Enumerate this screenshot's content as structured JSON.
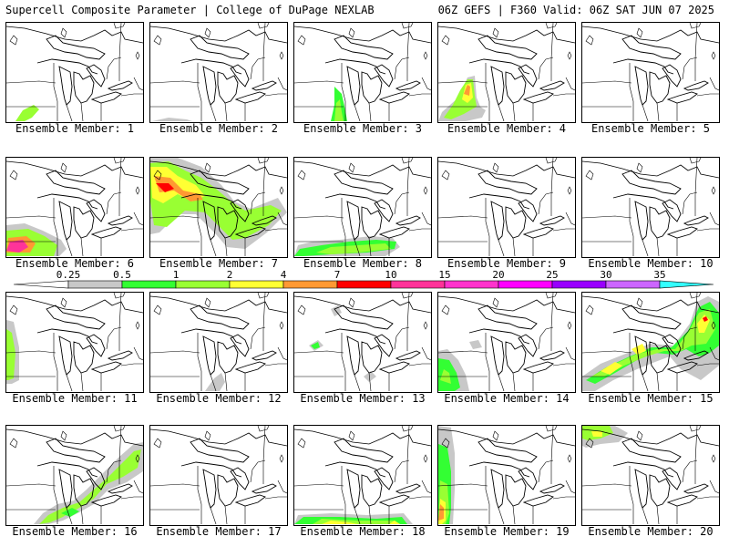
{
  "header": {
    "left": "Supercell Composite Parameter | College of DuPage NEXLAB",
    "right": "06Z GEFS | F360 Valid: 06Z SAT JUN 07 2025"
  },
  "colorbar": {
    "labels": [
      "0.25",
      "0.5",
      "1",
      "2",
      "4",
      "7",
      "10",
      "15",
      "20",
      "25",
      "30",
      "35"
    ],
    "colors": [
      "#c8c8c8",
      "#33ff33",
      "#99ff33",
      "#ffff33",
      "#ff9933",
      "#ff0000",
      "#ff3399",
      "#ff33cc",
      "#ff00ff",
      "#9900ff",
      "#cc66ff",
      "#33ffff"
    ]
  },
  "panels": [
    {
      "label": "Ensemble Member: 1",
      "blobs": [
        [
          "#99ff33",
          "M10,108 L18,96 L30,90 L36,95 L28,104 L20,108 Z"
        ]
      ]
    },
    {
      "label": "Ensemble Member: 2",
      "blobs": [
        [
          "#c8c8c8",
          "M2,108 L20,104 L40,106 L46,108 Z"
        ]
      ]
    },
    {
      "label": "Ensemble Member: 3",
      "blobs": [
        [
          "#33ff33",
          "M40,108 L44,90 L44,70 L52,78 L56,96 L58,108 Z"
        ],
        [
          "#99ff33",
          "M44,108 L46,88 L50,84 L52,98 L54,108 Z"
        ]
      ]
    },
    {
      "label": "Ensemble Member: 4",
      "blobs": [
        [
          "#c8c8c8",
          "M0,108 L4,98 L22,82 L32,60 L40,58 L42,82 L46,92 L52,96 L48,104 L30,108 Z"
        ],
        [
          "#99ff33",
          "M6,104 L16,90 L24,74 L32,62 L38,62 L40,80 L42,92 L28,100 L14,106 Z"
        ],
        [
          "#ffff33",
          "M26,84 L30,68 L36,66 L38,82 L32,88 Z"
        ],
        [
          "#ff9933",
          "M28,78 L32,68 L35,70 L34,80 Z"
        ]
      ]
    },
    {
      "label": "Ensemble Member: 5",
      "blobs": []
    },
    {
      "label": "Ensemble Member: 6",
      "blobs": [
        [
          "#c8c8c8",
          "M0,108 L0,74 L20,72 L40,80 L60,90 L66,100 L58,108 Z"
        ],
        [
          "#99ff33",
          "M0,108 L0,80 L24,78 L42,86 L56,96 L52,108 Z"
        ],
        [
          "#ff9933",
          "M0,104 L2,88 L22,86 L32,94 L26,104 Z"
        ],
        [
          "#ff3399",
          "M0,102 L4,92 L18,90 L24,98 L14,104 Z"
        ]
      ]
    },
    {
      "label": "Ensemble Member: 7",
      "blobs": [
        [
          "#c8c8c8",
          "M0,0 L30,0 L56,10 L78,30 L92,48 L110,56 L140,44 L150,60 L128,82 L104,100 L84,98 L72,84 L50,62 L30,62 L10,82 L0,84 Z"
        ],
        [
          "#99ff33",
          "M0,6 L20,4 L38,14 L56,22 L72,34 L86,46 L104,58 L132,52 L144,58 L130,74 L104,88 L90,90 L80,80 L60,60 L38,58 L18,76 L4,74 L0,48 Z"
        ],
        [
          "#ffff33",
          "M0,10 L18,10 L30,20 L50,30 L60,42 L46,48 L30,40 L14,50 L2,44 Z"
        ],
        [
          "#ff9933",
          "M4,20 L22,22 L36,36 L54,40 L58,46 L44,48 L26,36 L10,38 Z"
        ],
        [
          "#ff0000",
          "M6,28 L20,28 L26,34 L16,38 Z"
        ]
      ]
    },
    {
      "label": "Ensemble Member: 8",
      "blobs": [
        [
          "#c8c8c8",
          "M0,108 L4,96 L20,92 L50,90 L84,86 L108,88 L116,98 L100,108 Z"
        ],
        [
          "#33ff33",
          "M0,108 L6,100 L30,96 L60,92 L90,90 L112,92 L110,100 L80,104 L40,106 L10,108 Z"
        ],
        [
          "#99ff33",
          "M24,104 L40,98 L70,96 L100,94 L106,100 L70,104 L40,106 Z"
        ]
      ]
    },
    {
      "label": "Ensemble Member: 9",
      "blobs": []
    },
    {
      "label": "Ensemble Member: 10",
      "blobs": []
    },
    {
      "label": "Ensemble Member: 11",
      "blobs": [
        [
          "#c8c8c8",
          "M0,30 L8,32 L14,60 L14,96 L6,100 L0,100 Z"
        ],
        [
          "#99ff33",
          "M0,40 L6,44 L10,66 L8,94 L2,96 L0,96 Z"
        ]
      ]
    },
    {
      "label": "Ensemble Member: 12",
      "blobs": [
        [
          "#c8c8c8",
          "M60,108 L70,94 L78,88 L82,98 L76,108 Z"
        ]
      ]
    },
    {
      "label": "Ensemble Member: 13",
      "blobs": [
        [
          "#c8c8c8",
          "M16,58 L26,52 L32,58 L22,64 Z M40,18 L48,14 L52,22 L44,26 Z M76,92 L84,86 L90,92 L82,98 Z"
        ],
        [
          "#33ff33",
          "M18,58 L26,54 L28,60 L22,62 Z"
        ]
      ]
    },
    {
      "label": "Ensemble Member: 14",
      "blobs": [
        [
          "#c8c8c8",
          "M0,108 L0,64 L10,62 L22,74 L30,90 L34,108 Z M34,54 L44,52 L48,60 L38,62 Z"
        ],
        [
          "#33ff33",
          "M0,108 L0,72 L12,74 L20,88 L24,104 L18,108 Z"
        ],
        [
          "#99ff33",
          "M2,96 L6,84 L12,88 L14,100 Z"
        ]
      ]
    },
    {
      "label": "Ensemble Member: 15",
      "blobs": [
        [
          "#c8c8c8",
          "M0,108 L0,92 L20,78 L50,66 L74,56 L100,58 L118,34 L126,10 L138,4 L150,10 L150,80 L130,96 L108,84 L96,70 L80,76 L60,84 L34,96 L14,108 Z"
        ],
        [
          "#33ff33",
          "M4,96 L26,82 L52,70 L76,60 L98,60 L116,42 L128,16 L140,10 L150,22 L150,58 L140,66 L128,70 L114,62 L100,68 L80,66 L60,74 L36,88 L14,100 Z"
        ],
        [
          "#99ff33",
          "M10,92 L32,80 L58,68 L82,62 L102,62 L116,44 L128,22 L140,18 L146,40 L136,56 L120,58 L108,64 L90,64 L70,70 L46,80 L24,92 Z"
        ],
        [
          "#ffff33",
          "M20,86 L36,76 L44,80 L30,90 Z M54,62 L66,56 L70,64 L60,68 Z M126,34 L134,24 L140,30 L134,44 L128,44 Z"
        ],
        [
          "#ff0000",
          "M132,28 L136,26 L138,30 L134,32 Z"
        ]
      ]
    },
    {
      "label": "Ensemble Member: 16",
      "blobs": [
        [
          "#c8c8c8",
          "M30,108 L40,96 L56,86 L74,82 L88,70 L106,52 L124,34 L140,20 L150,18 L150,50 L132,62 L112,70 L96,86 L78,96 L62,104 L46,108 Z"
        ],
        [
          "#99ff33",
          "M36,108 L46,98 L62,90 L80,84 L96,70 L112,56 L126,42 L140,28 L148,26 L144,46 L128,56 L110,64 L96,80 L80,90 L62,100 L48,106 Z"
        ],
        [
          "#33ff33",
          "M60,96 L72,90 L80,94 L70,100 Z"
        ]
      ]
    },
    {
      "label": "Ensemble Member: 17",
      "blobs": []
    },
    {
      "label": "Ensemble Member: 18",
      "blobs": [
        [
          "#c8c8c8",
          "M0,108 L4,98 L40,96 L80,98 L120,96 L130,108 Z"
        ],
        [
          "#33ff33",
          "M0,108 L10,100 L50,100 L90,102 L118,100 L124,108 Z"
        ],
        [
          "#99ff33",
          "M20,108 L30,102 L70,104 L110,104 L116,108 Z"
        ],
        [
          "#ffff33",
          "M30,108 L40,104 L60,106 L70,108 Z M104,108 L110,104 L116,108 Z"
        ]
      ]
    },
    {
      "label": "Ensemble Member: 19",
      "blobs": [
        [
          "#c8c8c8",
          "M0,108 L0,0 L14,2 L18,30 L18,70 L16,108 Z"
        ],
        [
          "#33ff33",
          "M0,108 L0,20 L10,24 L14,50 L14,90 L12,108 Z"
        ],
        [
          "#99ff33",
          "M0,108 L2,60 L10,64 L12,96 L8,108 Z"
        ],
        [
          "#ffff33",
          "M0,108 L2,80 L8,84 L8,104 L4,108 Z"
        ],
        [
          "#ff9933",
          "M0,104 L2,86 L6,90 L6,102 Z"
        ]
      ]
    },
    {
      "label": "Ensemble Member: 20",
      "blobs": [
        [
          "#c8c8c8",
          "M0,0 L36,0 L50,8 L40,18 L20,20 L4,24 L0,22 Z"
        ],
        [
          "#99ff33",
          "M0,0 L30,0 L34,8 L20,14 L6,16 L0,14 Z"
        ],
        [
          "#ffff33",
          "M10,6 L22,6 L22,12 L12,12 Z"
        ]
      ]
    }
  ]
}
